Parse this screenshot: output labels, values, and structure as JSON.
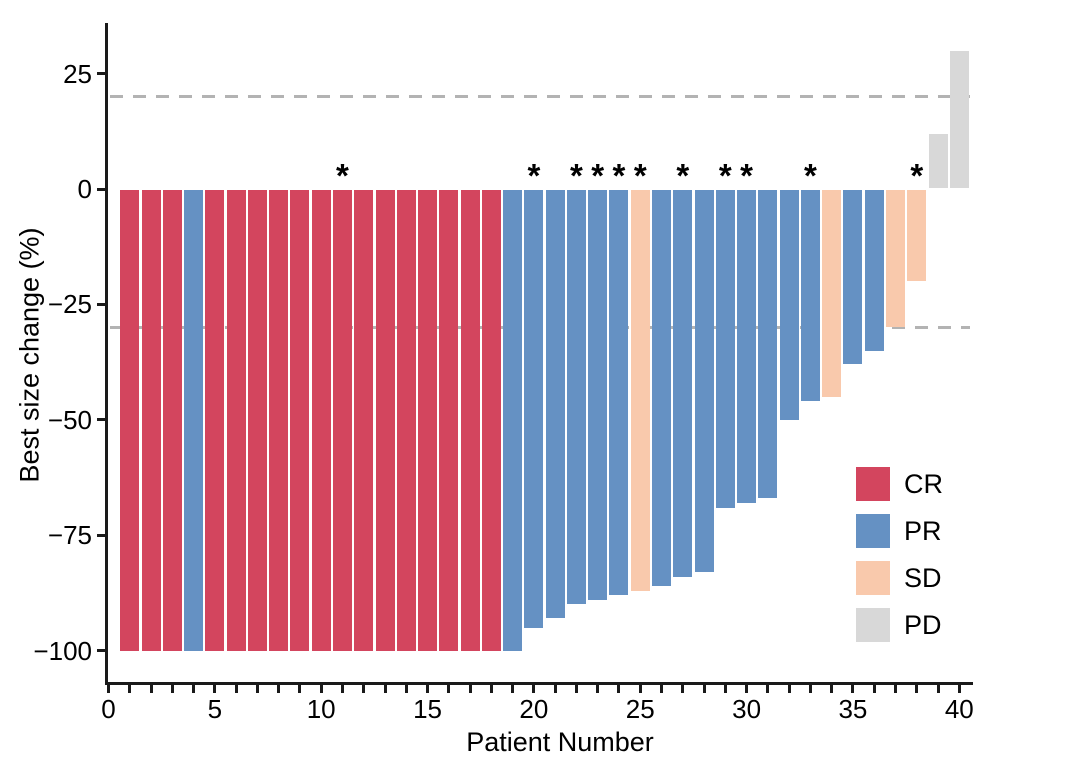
{
  "chart_data": {
    "type": "bar",
    "title": "",
    "xlabel": "Patient Number",
    "ylabel": "Best size change (%)",
    "x_tick_labels": [
      0,
      5,
      10,
      15,
      20,
      25,
      30,
      35,
      40
    ],
    "x_minor_tick_every": 1,
    "y_ticks": [
      25,
      0,
      -25,
      -50,
      -75,
      -100
    ],
    "xlim": [
      0,
      41
    ],
    "ylim": [
      -107,
      35
    ],
    "grid": false,
    "reference_lines": [
      20,
      -30
    ],
    "reference_line_style": "dashed-gray",
    "annotation_symbol": "*",
    "legend_position": "right-inside",
    "legend": [
      {
        "label": "CR",
        "color": "#d3455e"
      },
      {
        "label": "PR",
        "color": "#6591c3"
      },
      {
        "label": "SD",
        "color": "#f9c9ac"
      },
      {
        "label": "PD",
        "color": "#d8d8d8"
      }
    ],
    "patients": [
      {
        "patient": 1,
        "response": "CR",
        "value": -100,
        "star": false
      },
      {
        "patient": 2,
        "response": "CR",
        "value": -100,
        "star": false
      },
      {
        "patient": 3,
        "response": "CR",
        "value": -100,
        "star": false
      },
      {
        "patient": 4,
        "response": "PR",
        "value": -100,
        "star": false
      },
      {
        "patient": 5,
        "response": "CR",
        "value": -100,
        "star": false
      },
      {
        "patient": 6,
        "response": "CR",
        "value": -100,
        "star": false
      },
      {
        "patient": 7,
        "response": "CR",
        "value": -100,
        "star": false
      },
      {
        "patient": 8,
        "response": "CR",
        "value": -100,
        "star": false
      },
      {
        "patient": 9,
        "response": "CR",
        "value": -100,
        "star": false
      },
      {
        "patient": 10,
        "response": "CR",
        "value": -100,
        "star": false
      },
      {
        "patient": 11,
        "response": "CR",
        "value": -100,
        "star": true
      },
      {
        "patient": 12,
        "response": "CR",
        "value": -100,
        "star": false
      },
      {
        "patient": 13,
        "response": "CR",
        "value": -100,
        "star": false
      },
      {
        "patient": 14,
        "response": "CR",
        "value": -100,
        "star": false
      },
      {
        "patient": 15,
        "response": "CR",
        "value": -100,
        "star": false
      },
      {
        "patient": 16,
        "response": "CR",
        "value": -100,
        "star": false
      },
      {
        "patient": 17,
        "response": "CR",
        "value": -100,
        "star": false
      },
      {
        "patient": 18,
        "response": "CR",
        "value": -100,
        "star": false
      },
      {
        "patient": 19,
        "response": "PR",
        "value": -100,
        "star": false
      },
      {
        "patient": 20,
        "response": "PR",
        "value": -95,
        "star": true
      },
      {
        "patient": 21,
        "response": "PR",
        "value": -93,
        "star": false
      },
      {
        "patient": 22,
        "response": "PR",
        "value": -90,
        "star": true
      },
      {
        "patient": 23,
        "response": "PR",
        "value": -89,
        "star": true
      },
      {
        "patient": 24,
        "response": "PR",
        "value": -88,
        "star": true
      },
      {
        "patient": 25,
        "response": "SD",
        "value": -87,
        "star": true
      },
      {
        "patient": 26,
        "response": "PR",
        "value": -86,
        "star": false
      },
      {
        "patient": 27,
        "response": "PR",
        "value": -84,
        "star": true
      },
      {
        "patient": 28,
        "response": "PR",
        "value": -83,
        "star": false
      },
      {
        "patient": 29,
        "response": "PR",
        "value": -69,
        "star": true
      },
      {
        "patient": 30,
        "response": "PR",
        "value": -68,
        "star": true
      },
      {
        "patient": 31,
        "response": "PR",
        "value": -67,
        "star": false
      },
      {
        "patient": 32,
        "response": "PR",
        "value": -50,
        "star": false
      },
      {
        "patient": 33,
        "response": "PR",
        "value": -46,
        "star": true
      },
      {
        "patient": 34,
        "response": "SD",
        "value": -45,
        "star": false
      },
      {
        "patient": 35,
        "response": "PR",
        "value": -38,
        "star": false
      },
      {
        "patient": 36,
        "response": "PR",
        "value": -35,
        "star": false
      },
      {
        "patient": 37,
        "response": "SD",
        "value": -30,
        "star": false
      },
      {
        "patient": 38,
        "response": "SD",
        "value": -20,
        "star": true
      },
      {
        "patient": 39,
        "response": "PD",
        "value": 12,
        "star": false
      },
      {
        "patient": 40,
        "response": "PD",
        "value": 30,
        "star": false
      }
    ],
    "colors": {
      "axis": "#1a1a1a",
      "reference_line": "#b3b3b3",
      "background": "#ffffff"
    }
  }
}
